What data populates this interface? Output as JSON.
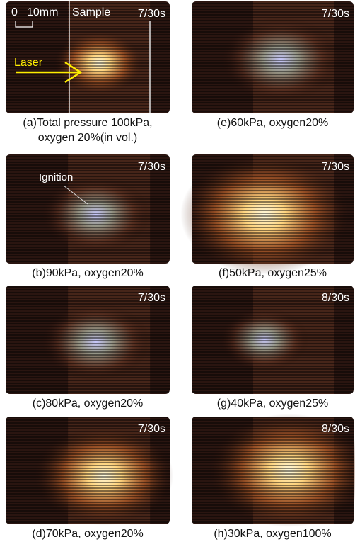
{
  "panels": [
    {
      "time": "7/30s",
      "caption": [
        "(a)Total pressure 100kPa,",
        "oxygen 20%(in vol.)"
      ]
    },
    {
      "time": "7/30s",
      "caption": [
        "(b)90kPa, oxygen20%"
      ]
    },
    {
      "time": "7/30s",
      "caption": [
        "(c)80kPa, oxygen20%"
      ]
    },
    {
      "time": "7/30s",
      "caption": [
        "(d)70kPa, oxygen20%"
      ]
    },
    {
      "time": "7/30s",
      "caption": [
        "(e)60kPa, oxygen20%"
      ]
    },
    {
      "time": "7/30s",
      "caption": [
        "(f)50kPa, oxygen25%"
      ]
    },
    {
      "time": "8/30s",
      "caption": [
        "(g)40kPa, oxygen25%"
      ]
    },
    {
      "time": "8/30s",
      "caption": [
        "(h)30kPa, oxygen100%"
      ]
    }
  ],
  "annotations": {
    "scale_zero": "0",
    "scale_length": "10mm",
    "sample": "Sample",
    "laser": "Laser",
    "ignition": "Ignition"
  }
}
